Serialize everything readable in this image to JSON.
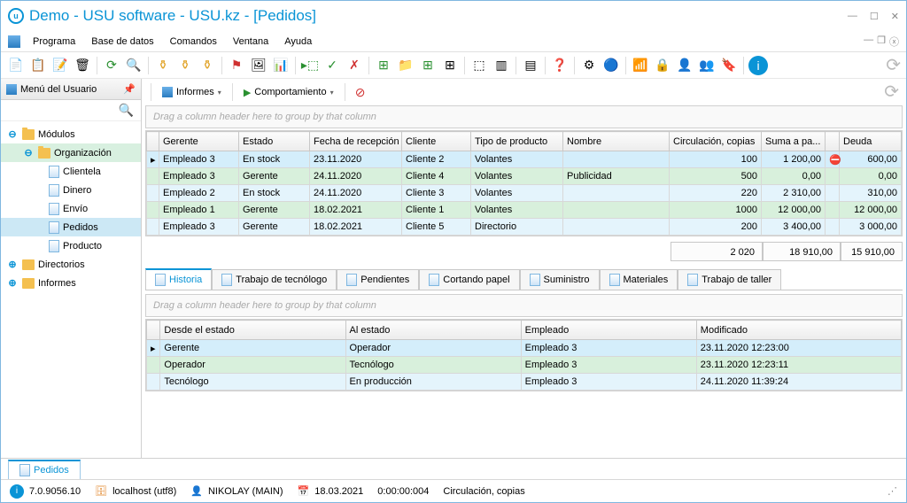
{
  "title": "Demo - USU software - USU.kz - [Pedidos]",
  "menu": [
    "Programa",
    "Base de datos",
    "Comandos",
    "Ventana",
    "Ayuda"
  ],
  "sidebar": {
    "title": "Menú del Usuario",
    "nodes": [
      {
        "label": "Módulos",
        "depth": 0,
        "type": "folder-open",
        "exp": "⊖"
      },
      {
        "label": "Organización",
        "depth": 1,
        "type": "folder-open",
        "exp": "⊖",
        "sel": "sel2"
      },
      {
        "label": "Clientela",
        "depth": 2,
        "type": "doc"
      },
      {
        "label": "Dinero",
        "depth": 2,
        "type": "doc"
      },
      {
        "label": "Envío",
        "depth": 2,
        "type": "doc"
      },
      {
        "label": "Pedidos",
        "depth": 2,
        "type": "doc",
        "sel": "sel"
      },
      {
        "label": "Producto",
        "depth": 2,
        "type": "doc"
      },
      {
        "label": "Directorios",
        "depth": 0,
        "type": "folder",
        "exp": "⊕"
      },
      {
        "label": "Informes",
        "depth": 0,
        "type": "folder",
        "exp": "⊕"
      }
    ]
  },
  "sub_toolbar": {
    "informes": "Informes",
    "comport": "Comportamiento"
  },
  "group_hint": "Drag a column header here to group by that column",
  "grid1": {
    "cols": [
      "",
      "Gerente",
      "Estado",
      "Fecha de recepción",
      "Cliente",
      "Tipo de producto",
      "Nombre",
      "Circulación, copias",
      "Suma a pa...",
      "",
      "Deuda"
    ],
    "widths": [
      "14px",
      "90px",
      "80px",
      "104px",
      "78px",
      "104px",
      "120px",
      "104px",
      "72px",
      "16px",
      "70px"
    ],
    "rows": [
      [
        "▸",
        "Empleado 3",
        "En stock",
        "23.11.2020",
        "Cliente 2",
        "Volantes",
        "",
        "100",
        "1 200,00",
        "!",
        "600,00"
      ],
      [
        "",
        "Empleado 3",
        "Gerente",
        "24.11.2020",
        "Cliente 4",
        "Volantes",
        "Publicidad",
        "500",
        "0,00",
        "",
        "0,00"
      ],
      [
        "",
        "Empleado 2",
        "En stock",
        "24.11.2020",
        "Cliente 3",
        "Volantes",
        "",
        "220",
        "2 310,00",
        "",
        "310,00"
      ],
      [
        "",
        "Empleado 1",
        "Gerente",
        "18.02.2021",
        "Cliente 1",
        "Volantes",
        "",
        "1000",
        "12 000,00",
        "",
        "12 000,00"
      ],
      [
        "",
        "Empleado 3",
        "Gerente",
        "18.02.2021",
        "Cliente 5",
        "Directorio",
        "",
        "200",
        "3 400,00",
        "",
        "3 000,00"
      ]
    ],
    "summary": [
      "2 020",
      "18 910,00",
      "15 910,00"
    ]
  },
  "tabs": [
    "Historia",
    "Trabajo de tecnólogo",
    "Pendientes",
    "Cortando papel",
    "Suministro",
    "Materiales",
    "Trabajo de taller"
  ],
  "grid2": {
    "cols": [
      "",
      "Desde el estado",
      "Al estado",
      "Empleado",
      "Modificado"
    ],
    "widths": [
      "14px",
      "190px",
      "180px",
      "180px",
      "210px"
    ],
    "rows": [
      [
        "▸",
        "Gerente",
        "Operador",
        "Empleado 3",
        "23.11.2020 12:23:00"
      ],
      [
        "",
        "Operador",
        "Tecnólogo",
        "Empleado 3",
        "23.11.2020 12:23:11"
      ],
      [
        "",
        "Tecnólogo",
        "En producción",
        "Empleado 3",
        "24.11.2020 11:39:24"
      ]
    ]
  },
  "bottom_tab": "Pedidos",
  "status": {
    "version": "7.0.9056.10",
    "host": "localhost (utf8)",
    "user": "NIKOLAY (MAIN)",
    "date": "18.03.2021",
    "time": "0:00:00:004",
    "extra": "Circulación, copias"
  },
  "icons": {
    "info": "ℹ",
    "db": "🗄",
    "user": "👤",
    "cal": "📅"
  }
}
